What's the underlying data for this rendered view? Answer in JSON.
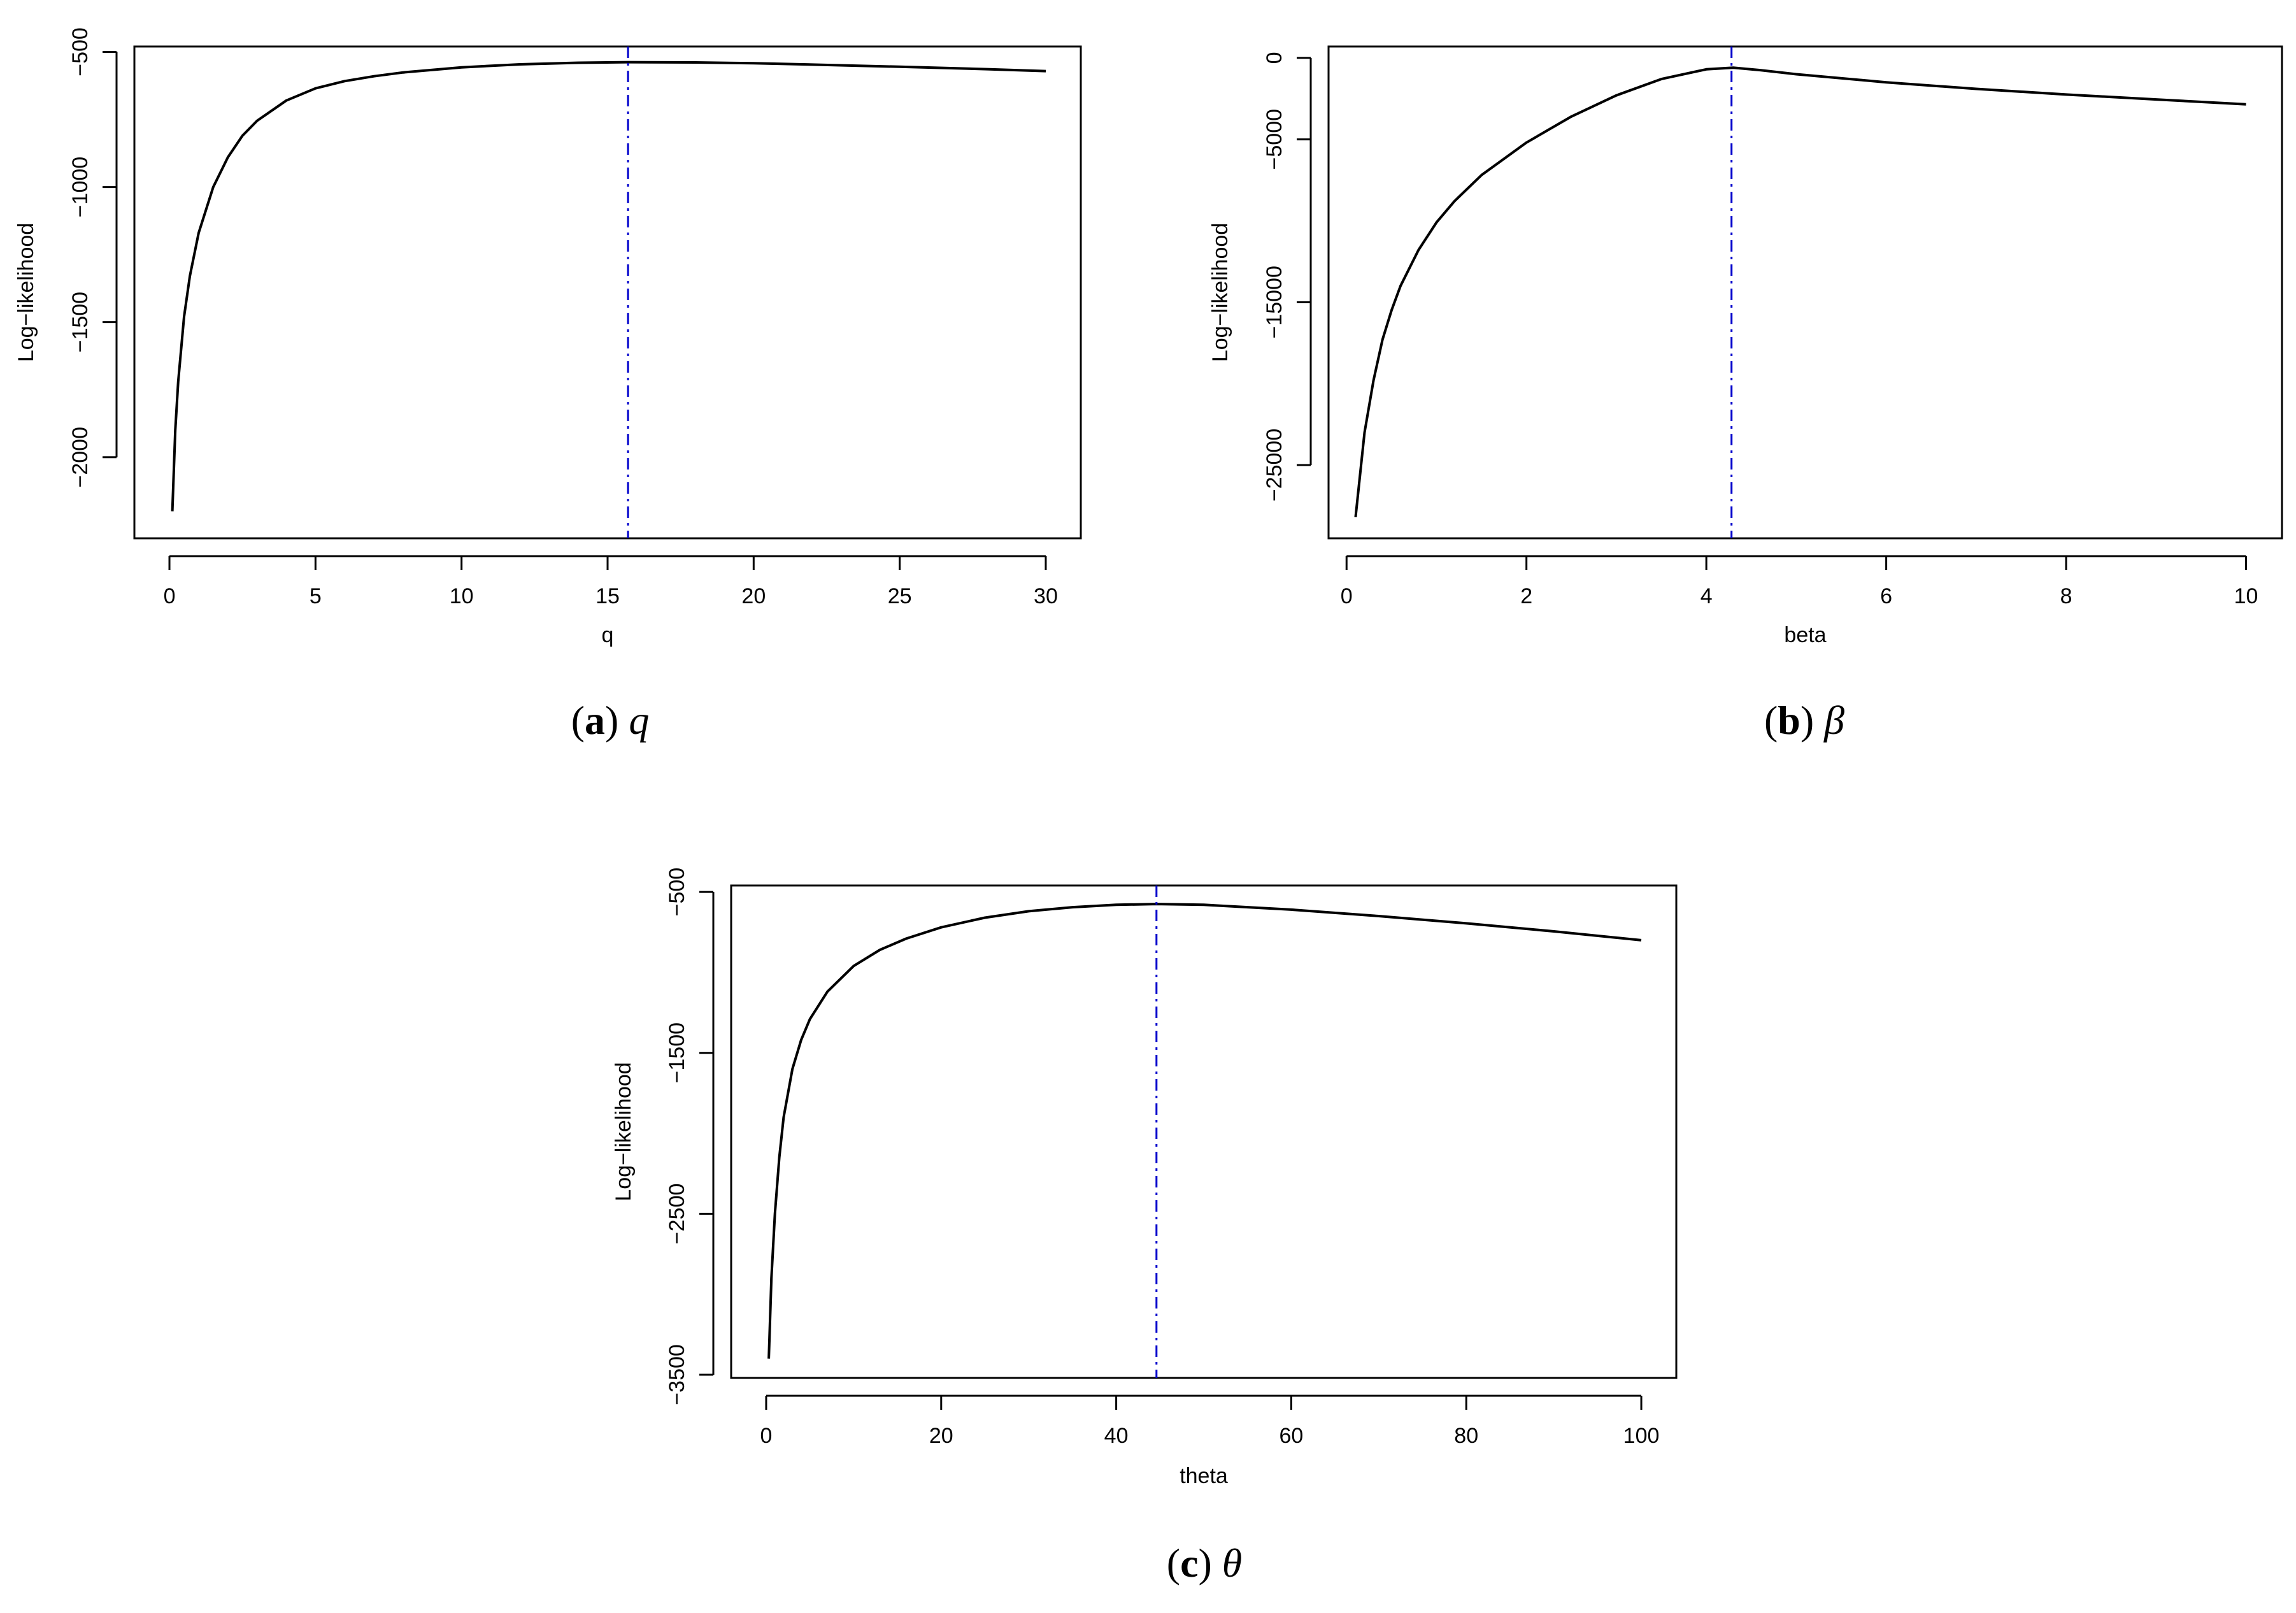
{
  "chart_data": [
    {
      "type": "line",
      "panel_label": "(a)",
      "caption_symbol": "q",
      "title": "",
      "xlabel": "q",
      "ylabel": "Log−likelihood",
      "xlim": [
        -1.2,
        31.2
      ],
      "ylim": [
        -2300,
        -480
      ],
      "xticks": [
        0,
        5,
        10,
        15,
        20,
        25,
        30
      ],
      "yticks": [
        -2000,
        -1500,
        -1000,
        -500
      ],
      "grid": false,
      "legend": "none",
      "line_color": "#000000",
      "vline_color": "#0000cc",
      "vline_x": 15.7,
      "series": [
        {
          "x": [
            0.1,
            0.2,
            0.3,
            0.5,
            0.7,
            1,
            1.5,
            2,
            2.5,
            3,
            4,
            5,
            6,
            7,
            8,
            10,
            12,
            14,
            15.7,
            18,
            20,
            22,
            25,
            28,
            30
          ],
          "values": [
            -2200,
            -1900,
            -1720,
            -1480,
            -1330,
            -1170,
            -1000,
            -890,
            -810,
            -755,
            -680,
            -635,
            -608,
            -590,
            -576,
            -557,
            -546,
            -540,
            -538,
            -539,
            -542,
            -547,
            -555,
            -564,
            -571
          ]
        }
      ]
    },
    {
      "type": "line",
      "panel_label": "(b)",
      "caption_symbol": "β",
      "title": "",
      "xlabel": "beta",
      "ylabel": "Log−likelihood",
      "xlim": [
        -0.2,
        10.4
      ],
      "ylim": [
        -29500,
        700
      ],
      "xticks": [
        0,
        2,
        4,
        6,
        8,
        10
      ],
      "yticks": [
        0,
        -5000,
        -15000,
        -25000
      ],
      "grid": false,
      "legend": "none",
      "line_color": "#000000",
      "vline_color": "#0000cc",
      "vline_x": 4.28,
      "series": [
        {
          "x": [
            0.1,
            0.2,
            0.3,
            0.4,
            0.5,
            0.6,
            0.8,
            1.0,
            1.2,
            1.5,
            2.0,
            2.5,
            3.0,
            3.5,
            4.0,
            4.3,
            4.6,
            5.0,
            6.0,
            7.0,
            8.0,
            9.0,
            10.0
          ],
          "values": [
            -28200,
            -23000,
            -19800,
            -17300,
            -15500,
            -14000,
            -11800,
            -10100,
            -8800,
            -7200,
            -5200,
            -3600,
            -2300,
            -1300,
            -700,
            -600,
            -750,
            -1000,
            -1500,
            -1900,
            -2250,
            -2550,
            -2850
          ]
        }
      ]
    },
    {
      "type": "line",
      "panel_label": "(c)",
      "caption_symbol": "θ",
      "title": "",
      "xlabel": "theta",
      "ylabel": "Log−likelihood",
      "xlim": [
        -4,
        104
      ],
      "ylim": [
        -3520,
        -460
      ],
      "xticks": [
        0,
        20,
        40,
        60,
        80,
        100
      ],
      "yticks": [
        -500,
        -1500,
        -2500,
        -3500
      ],
      "grid": false,
      "legend": "none",
      "line_color": "#000000",
      "vline_color": "#0000cc",
      "vline_x": 44.6,
      "series": [
        {
          "x": [
            0.3,
            0.6,
            1,
            1.5,
            2,
            3,
            4,
            5,
            7,
            10,
            13,
            16,
            20,
            25,
            30,
            35,
            40,
            44.6,
            50,
            60,
            70,
            80,
            90,
            100
          ],
          "values": [
            -3400,
            -2900,
            -2500,
            -2150,
            -1900,
            -1600,
            -1420,
            -1290,
            -1120,
            -960,
            -860,
            -790,
            -720,
            -660,
            -620,
            -595,
            -580,
            -575,
            -580,
            -610,
            -650,
            -695,
            -745,
            -800
          ]
        }
      ]
    }
  ]
}
